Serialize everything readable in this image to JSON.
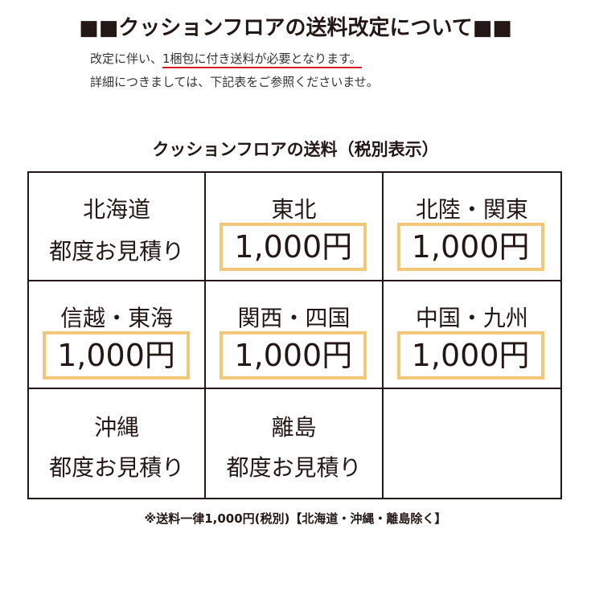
{
  "title": "■■クッションフロアの送料改定について■■",
  "intro": {
    "line1_pre": "改定に伴い、",
    "line1_underlined": "1梱包に付き送料が必要となります。",
    "line2": "詳細につきましては、下記表をご参照くださいませ。"
  },
  "table_title": "クッションフロアの送料（税別表示）",
  "regions": [
    {
      "name": "北海道",
      "price": "",
      "note": "都度お見積り"
    },
    {
      "name": "東北",
      "price": "1,000円",
      "note": ""
    },
    {
      "name": "北陸・関東",
      "price": "1,000円",
      "note": ""
    },
    {
      "name": "信越・東海",
      "price": "1,000円",
      "note": ""
    },
    {
      "name": "関西・四国",
      "price": "1,000円",
      "note": ""
    },
    {
      "name": "中国・九州",
      "price": "1,000円",
      "note": ""
    },
    {
      "name": "沖縄",
      "price": "",
      "note": "都度お見積り"
    },
    {
      "name": "離島",
      "price": "",
      "note": "都度お見積り"
    }
  ],
  "footnote": "※送料一律1,000円(税別)【北海道・沖縄・離島除く】",
  "colors": {
    "price_border": "#f1c77a",
    "underline": "#d7192a",
    "text": "#231815"
  }
}
